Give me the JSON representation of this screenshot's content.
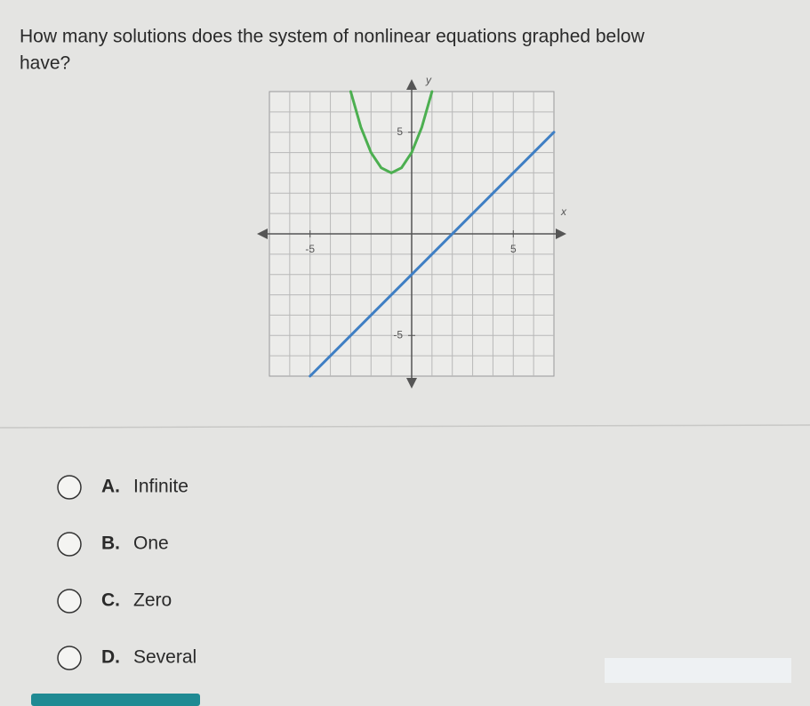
{
  "question": "How many solutions does the system of nonlinear equations graphed below have?",
  "graph": {
    "x_label": "x",
    "y_label": "y",
    "xlim": [
      -7,
      7
    ],
    "ylim": [
      -7,
      7
    ],
    "xticks": [
      -5,
      5
    ],
    "yticks": [
      -5,
      5
    ],
    "series": [
      {
        "color": "#4caf50",
        "x": [
          -3,
          -2.5,
          -2,
          -1.5,
          -1,
          -0.5,
          0,
          0.5,
          1
        ],
        "y": [
          7,
          5.25,
          4,
          3.25,
          3,
          3.25,
          4,
          5.25,
          7
        ]
      },
      {
        "color": "#3f7fc4",
        "x": [
          -5,
          7
        ],
        "y": [
          -7,
          5
        ]
      }
    ]
  },
  "choices": [
    {
      "letter": "A.",
      "text": "Infinite"
    },
    {
      "letter": "B.",
      "text": "One"
    },
    {
      "letter": "C.",
      "text": "Zero"
    },
    {
      "letter": "D.",
      "text": "Several"
    }
  ]
}
